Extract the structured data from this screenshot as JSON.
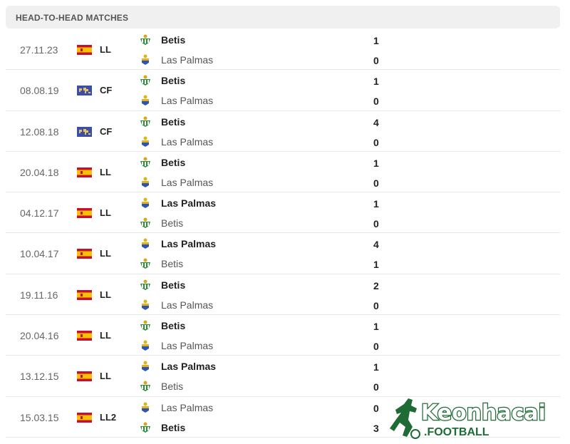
{
  "header": {
    "title": "HEAD-TO-HEAD MATCHES"
  },
  "colors": {
    "betis": "#2e8b3a",
    "laspalmas": "#e0b21a",
    "spain_red": "#c8102e",
    "spain_yellow": "#f6c100",
    "world_blue": "#3b4fa8",
    "logo_green": "#1f6b35"
  },
  "matches": [
    {
      "date": "27.11.23",
      "flag": "spain",
      "competition": "LL",
      "home": {
        "name": "Betis",
        "crest": "betis",
        "score": "1",
        "winner": true
      },
      "away": {
        "name": "Las Palmas",
        "crest": "laspalmas",
        "score": "0",
        "winner": false
      }
    },
    {
      "date": "08.08.19",
      "flag": "world",
      "competition": "CF",
      "home": {
        "name": "Betis",
        "crest": "betis",
        "score": "1",
        "winner": true
      },
      "away": {
        "name": "Las Palmas",
        "crest": "laspalmas",
        "score": "0",
        "winner": false
      }
    },
    {
      "date": "12.08.18",
      "flag": "world",
      "competition": "CF",
      "home": {
        "name": "Betis",
        "crest": "betis",
        "score": "4",
        "winner": true
      },
      "away": {
        "name": "Las Palmas",
        "crest": "laspalmas",
        "score": "0",
        "winner": false
      }
    },
    {
      "date": "20.04.18",
      "flag": "spain",
      "competition": "LL",
      "home": {
        "name": "Betis",
        "crest": "betis",
        "score": "1",
        "winner": true
      },
      "away": {
        "name": "Las Palmas",
        "crest": "laspalmas",
        "score": "0",
        "winner": false
      }
    },
    {
      "date": "04.12.17",
      "flag": "spain",
      "competition": "LL",
      "home": {
        "name": "Las Palmas",
        "crest": "laspalmas",
        "score": "1",
        "winner": true
      },
      "away": {
        "name": "Betis",
        "crest": "betis",
        "score": "0",
        "winner": false
      }
    },
    {
      "date": "10.04.17",
      "flag": "spain",
      "competition": "LL",
      "home": {
        "name": "Las Palmas",
        "crest": "laspalmas",
        "score": "4",
        "winner": true
      },
      "away": {
        "name": "Betis",
        "crest": "betis",
        "score": "1",
        "winner": false
      }
    },
    {
      "date": "19.11.16",
      "flag": "spain",
      "competition": "LL",
      "home": {
        "name": "Betis",
        "crest": "betis",
        "score": "2",
        "winner": true
      },
      "away": {
        "name": "Las Palmas",
        "crest": "laspalmas",
        "score": "0",
        "winner": false
      }
    },
    {
      "date": "20.04.16",
      "flag": "spain",
      "competition": "LL",
      "home": {
        "name": "Betis",
        "crest": "betis",
        "score": "1",
        "winner": true
      },
      "away": {
        "name": "Las Palmas",
        "crest": "laspalmas",
        "score": "0",
        "winner": false
      }
    },
    {
      "date": "13.12.15",
      "flag": "spain",
      "competition": "LL",
      "home": {
        "name": "Las Palmas",
        "crest": "laspalmas",
        "score": "1",
        "winner": true
      },
      "away": {
        "name": "Betis",
        "crest": "betis",
        "score": "0",
        "winner": false
      }
    },
    {
      "date": "15.03.15",
      "flag": "spain",
      "competition": "LL2",
      "home": {
        "name": "Las Palmas",
        "crest": "laspalmas",
        "score": "0",
        "winner": false
      },
      "away": {
        "name": "Betis",
        "crest": "betis",
        "score": "3",
        "winner": true
      }
    }
  ],
  "watermark": {
    "brand": "Keonhacai",
    "sub": ".FOOTBALL"
  }
}
